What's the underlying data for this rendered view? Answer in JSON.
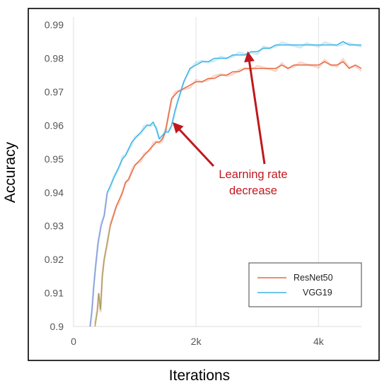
{
  "chart_data": {
    "type": "line",
    "xlabel": "Iterations",
    "ylabel": "Accuracy",
    "xlim": [
      0,
      4700
    ],
    "ylim": [
      0.9,
      0.9915
    ],
    "x_ticks": [
      {
        "value": 0,
        "label": "0"
      },
      {
        "value": 2000,
        "label": "2k"
      },
      {
        "value": 4000,
        "label": "4k"
      }
    ],
    "y_ticks": [
      {
        "value": 0.9,
        "label": "0.9"
      },
      {
        "value": 0.91,
        "label": "0.91"
      },
      {
        "value": 0.92,
        "label": "0.92"
      },
      {
        "value": 0.93,
        "label": "0.93"
      },
      {
        "value": 0.94,
        "label": "0.94"
      },
      {
        "value": 0.95,
        "label": "0.95"
      },
      {
        "value": 0.96,
        "label": "0.96"
      },
      {
        "value": 0.97,
        "label": "0.97"
      },
      {
        "value": 0.98,
        "label": "0.98"
      },
      {
        "value": 0.99,
        "label": "0.99"
      }
    ],
    "grid": {
      "vertical": true,
      "horizontal": false
    },
    "legend_position": "bottom-right",
    "series": [
      {
        "name": "ResNet50",
        "color": "#E8693F",
        "early_color": "#A6A060",
        "x": [
          350,
          390,
          410,
          440,
          470,
          500,
          550,
          600,
          650,
          700,
          750,
          800,
          850,
          900,
          950,
          1000,
          1050,
          1100,
          1150,
          1200,
          1250,
          1300,
          1350,
          1400,
          1450,
          1500,
          1550,
          1600,
          1650,
          1700,
          1800,
          1900,
          2000,
          2100,
          2200,
          2300,
          2400,
          2500,
          2600,
          2700,
          2800,
          2900,
          3000,
          3100,
          3200,
          3300,
          3400,
          3500,
          3600,
          3700,
          3800,
          3900,
          4000,
          4100,
          4200,
          4300,
          4400,
          4500,
          4600,
          4700
        ],
        "values": [
          0.9,
          0.905,
          0.91,
          0.905,
          0.915,
          0.92,
          0.925,
          0.93,
          0.933,
          0.936,
          0.938,
          0.94,
          0.943,
          0.944,
          0.946,
          0.948,
          0.949,
          0.95,
          0.951,
          0.952,
          0.953,
          0.954,
          0.955,
          0.955,
          0.956,
          0.958,
          0.963,
          0.968,
          0.969,
          0.97,
          0.971,
          0.972,
          0.973,
          0.973,
          0.974,
          0.974,
          0.975,
          0.975,
          0.976,
          0.976,
          0.977,
          0.977,
          0.977,
          0.977,
          0.977,
          0.977,
          0.978,
          0.977,
          0.978,
          0.978,
          0.978,
          0.978,
          0.978,
          0.979,
          0.978,
          0.978,
          0.979,
          0.977,
          0.978,
          0.977
        ]
      },
      {
        "name": "VGG19",
        "color": "#3DB4E3",
        "early_color": "#8E95D6",
        "x": [
          270,
          300,
          330,
          360,
          400,
          450,
          500,
          550,
          600,
          650,
          700,
          750,
          800,
          850,
          900,
          950,
          1000,
          1050,
          1100,
          1150,
          1200,
          1250,
          1300,
          1350,
          1400,
          1450,
          1500,
          1550,
          1600,
          1650,
          1700,
          1800,
          1900,
          2000,
          2100,
          2200,
          2300,
          2400,
          2500,
          2600,
          2700,
          2800,
          2900,
          3000,
          3100,
          3200,
          3300,
          3400,
          3500,
          3600,
          3700,
          3800,
          3900,
          4000,
          4100,
          4200,
          4300,
          4400,
          4500,
          4600,
          4700
        ],
        "values": [
          0.9,
          0.905,
          0.912,
          0.918,
          0.925,
          0.93,
          0.933,
          0.94,
          0.942,
          0.944,
          0.946,
          0.948,
          0.95,
          0.951,
          0.953,
          0.955,
          0.956,
          0.957,
          0.958,
          0.959,
          0.96,
          0.96,
          0.961,
          0.959,
          0.956,
          0.957,
          0.958,
          0.958,
          0.96,
          0.964,
          0.967,
          0.973,
          0.977,
          0.978,
          0.979,
          0.979,
          0.98,
          0.98,
          0.98,
          0.981,
          0.981,
          0.981,
          0.982,
          0.982,
          0.983,
          0.983,
          0.984,
          0.984,
          0.984,
          0.984,
          0.984,
          0.984,
          0.984,
          0.984,
          0.984,
          0.984,
          0.984,
          0.985,
          0.984,
          0.984,
          0.984
        ]
      }
    ],
    "annotations": [
      {
        "text_lines": [
          "Learning rate",
          "decrease"
        ],
        "color": "#C0181E",
        "arrows": [
          {
            "to": [
              1640,
              0.9605
            ]
          },
          {
            "to": [
              2850,
              0.9815
            ]
          }
        ]
      }
    ]
  }
}
